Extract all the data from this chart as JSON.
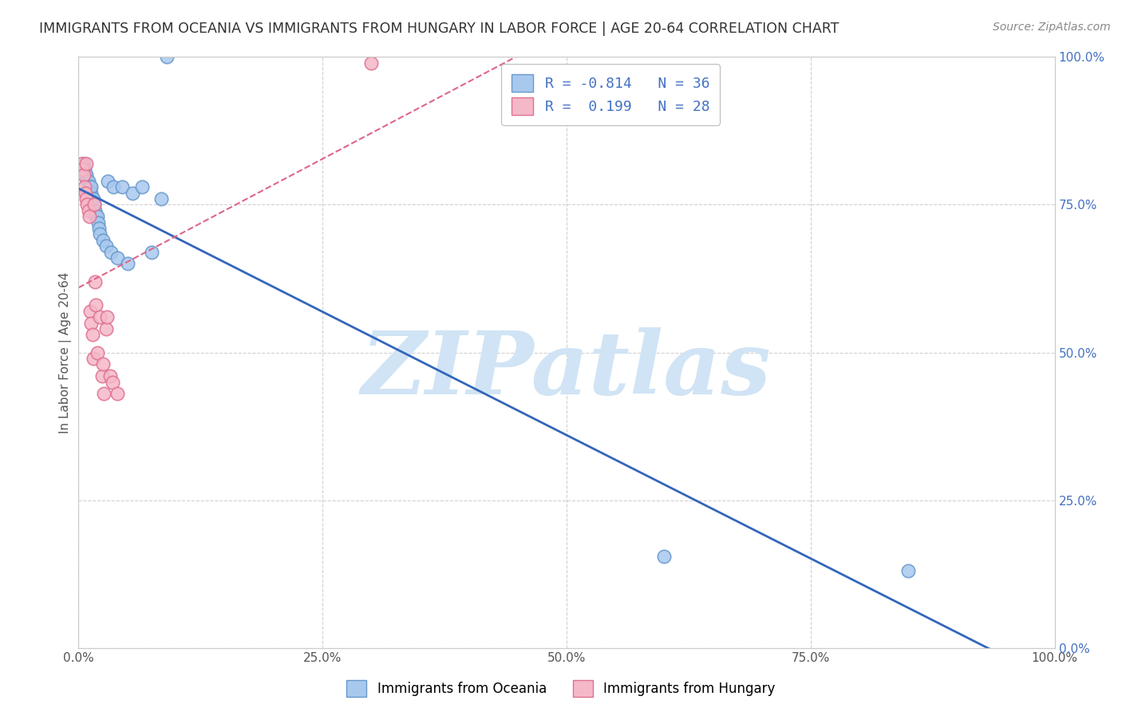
{
  "title": "IMMIGRANTS FROM OCEANIA VS IMMIGRANTS FROM HUNGARY IN LABOR FORCE | AGE 20-64 CORRELATION CHART",
  "source": "Source: ZipAtlas.com",
  "ylabel": "In Labor Force | Age 20-64",
  "xlim": [
    0,
    1
  ],
  "ylim": [
    0,
    1
  ],
  "xticks": [
    0,
    0.25,
    0.5,
    0.75,
    1.0
  ],
  "yticks": [
    0,
    0.25,
    0.5,
    0.75,
    1.0
  ],
  "xtick_labels": [
    "0.0%",
    "25.0%",
    "50.0%",
    "75.0%",
    "100.0%"
  ],
  "right_ytick_labels": [
    "0.0%",
    "25.0%",
    "50.0%",
    "75.0%",
    "100.0%"
  ],
  "oceania_color": "#A8C8EE",
  "hungary_color": "#F5B8C8",
  "oceania_edge": "#6699CC",
  "hungary_edge": "#E07090",
  "trend_oceania_color": "#3366BB",
  "trend_hungary_color": "#DD6688",
  "watermark_color": "#D0E4F5",
  "watermark_text": "ZIPatlas",
  "legend_line1": "R = -0.814   N = 36",
  "legend_line2": "R =  0.199   N = 28",
  "legend_label_oceania": "Immigrants from Oceania",
  "legend_label_hungary": "Immigrants from Hungary",
  "oceania_x": [
    0.005,
    0.006,
    0.007,
    0.008,
    0.009,
    0.01,
    0.011,
    0.012,
    0.012,
    0.013,
    0.013,
    0.014,
    0.015,
    0.016,
    0.016,
    0.017,
    0.018,
    0.019,
    0.02,
    0.021,
    0.022,
    0.025,
    0.028,
    0.03,
    0.033,
    0.036,
    0.04,
    0.045,
    0.05,
    0.055,
    0.065,
    0.075,
    0.085,
    0.09,
    0.6,
    0.85
  ],
  "oceania_y": [
    0.82,
    0.81,
    0.8,
    0.8,
    0.79,
    0.79,
    0.78,
    0.78,
    0.77,
    0.77,
    0.78,
    0.76,
    0.76,
    0.75,
    0.74,
    0.74,
    0.73,
    0.73,
    0.72,
    0.71,
    0.7,
    0.69,
    0.68,
    0.79,
    0.67,
    0.78,
    0.66,
    0.78,
    0.65,
    0.77,
    0.78,
    0.67,
    0.76,
    1.0,
    0.155,
    0.13
  ],
  "hungary_x": [
    0.003,
    0.004,
    0.005,
    0.006,
    0.007,
    0.008,
    0.008,
    0.009,
    0.01,
    0.011,
    0.012,
    0.013,
    0.014,
    0.015,
    0.016,
    0.017,
    0.018,
    0.019,
    0.022,
    0.024,
    0.025,
    0.026,
    0.028,
    0.029,
    0.032,
    0.035,
    0.04,
    0.3
  ],
  "hungary_y": [
    0.82,
    0.81,
    0.8,
    0.78,
    0.77,
    0.76,
    0.82,
    0.75,
    0.74,
    0.73,
    0.57,
    0.55,
    0.53,
    0.49,
    0.75,
    0.62,
    0.58,
    0.5,
    0.56,
    0.46,
    0.48,
    0.43,
    0.54,
    0.56,
    0.46,
    0.45,
    0.43,
    0.99
  ],
  "background_color": "#FFFFFF",
  "grid_color": "#CCCCCC",
  "title_color": "#333333",
  "right_axis_color": "#4472C4"
}
